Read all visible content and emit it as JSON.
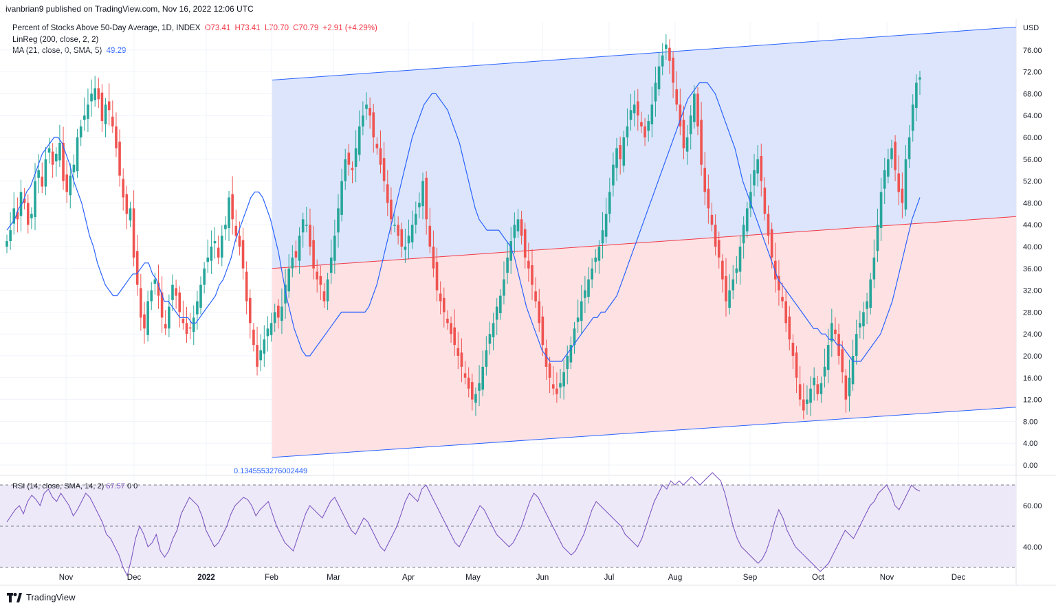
{
  "publisher": "ivanbrian9 published on TradingView.com, Nov 16, 2022 12:06 UTC",
  "legend": {
    "title": "Percent of Stocks Above 50-Day Average, 1D, INDEX",
    "open": "O73.41",
    "high": "H73.41",
    "low": "L70.70",
    "close": "C70.79",
    "change": "+2.91 (+4.29%)",
    "linreg": "LinReg (200, close, 2, 2)",
    "ma": "MA (21, close, 0, SMA, 5)",
    "ma_value": "49.29"
  },
  "rsi_legend": {
    "label": "RSI (14, close, SMA, 14, 2)",
    "value": "67.57",
    "extra1": "0",
    "extra2": "0"
  },
  "channel_label": "0.1345553276002449",
  "footer": {
    "brand": "TradingView"
  },
  "colors": {
    "up": "#26a69a",
    "down": "#ef5350",
    "ma": "#2962ff",
    "upper_fill": "#dce5fb",
    "lower_fill": "#fde1e3",
    "rsi_line": "#7e57c2",
    "rsi_band": "#ede9f8"
  },
  "chart_data": {
    "type": "candlestick",
    "currency": "USD",
    "y_range": [
      0,
      76
    ],
    "y_ticks": [
      "76.00",
      "72.00",
      "68.00",
      "64.00",
      "60.00",
      "56.00",
      "52.00",
      "48.00",
      "44.00",
      "40.00",
      "36.00",
      "32.00",
      "28.00",
      "24.00",
      "20.00",
      "16.00",
      "12.00",
      "8.00",
      "4.00",
      "0.00"
    ],
    "x_ticks": [
      "Nov",
      "Dec",
      "2022",
      "Feb",
      "Mar",
      "Apr",
      "May",
      "Jun",
      "Jul",
      "Aug",
      "Sep",
      "Oct",
      "Nov",
      "Dec"
    ],
    "close_series": [
      41,
      43,
      47,
      45,
      50,
      48,
      44,
      46,
      52,
      54,
      51,
      56,
      58,
      55,
      57,
      59,
      52,
      50,
      53,
      55,
      60,
      62,
      64,
      66,
      68,
      69,
      67,
      63,
      66,
      65,
      62,
      58,
      53,
      49,
      46,
      47,
      38,
      33,
      27,
      25,
      30,
      32,
      34,
      31,
      27,
      25,
      29,
      33,
      31,
      28,
      26,
      24,
      25,
      27,
      30,
      33,
      36,
      38,
      40,
      41,
      38,
      42,
      44,
      49,
      45,
      42,
      40,
      36,
      30,
      26,
      22,
      18,
      21,
      23,
      25,
      26,
      28,
      27,
      29,
      33,
      36,
      38,
      38,
      42,
      45,
      44,
      40,
      36,
      34,
      33,
      30,
      34,
      38,
      42,
      47,
      52,
      56,
      55,
      54,
      58,
      62,
      64,
      66,
      64,
      60,
      58,
      55,
      52,
      48,
      45,
      44,
      42,
      40,
      40,
      42,
      44,
      46,
      48,
      52,
      45,
      40,
      36,
      32,
      30,
      28,
      26,
      24,
      22,
      20,
      18,
      16,
      14,
      12,
      13,
      15,
      18,
      21,
      24,
      26,
      29,
      31,
      34,
      38,
      41,
      44,
      45,
      42,
      38,
      36,
      33,
      30,
      26,
      22,
      18,
      16,
      14,
      13,
      15,
      17,
      20,
      22,
      25,
      27,
      30,
      32,
      34,
      36,
      38,
      40,
      43,
      46,
      50,
      55,
      58,
      56,
      60,
      62,
      65,
      66,
      64,
      62,
      60,
      63,
      66,
      70,
      73,
      75,
      77,
      74,
      70,
      66,
      62,
      58,
      60,
      64,
      68,
      62,
      55,
      50,
      47,
      44,
      40,
      38,
      34,
      30,
      32,
      34,
      36,
      40,
      44,
      47,
      50,
      54,
      56,
      52,
      46,
      42,
      38,
      34,
      32,
      30,
      26,
      23,
      20,
      16,
      12,
      10,
      12,
      14,
      16,
      13,
      15,
      18,
      22,
      26,
      24,
      20,
      17,
      12,
      16,
      20,
      24,
      26,
      28,
      30,
      34,
      38,
      44,
      50,
      54,
      56,
      58,
      54,
      50,
      48,
      56,
      60,
      66,
      70,
      71
    ],
    "ma_series": [
      43,
      44,
      45,
      47,
      48,
      50,
      51,
      53,
      55,
      57,
      58,
      59,
      60,
      60,
      59,
      57,
      55,
      52,
      50,
      48,
      45,
      42,
      40,
      37,
      35,
      33,
      32,
      31,
      31,
      32,
      33,
      34,
      35,
      35,
      36,
      37,
      37,
      35,
      34,
      32,
      30,
      30,
      29,
      28,
      27,
      27,
      27,
      26,
      26,
      27,
      28,
      29,
      30,
      31,
      33,
      34,
      36,
      38,
      41,
      43,
      45,
      47,
      49,
      50,
      50,
      49,
      47,
      45,
      42,
      39,
      35,
      31,
      28,
      25,
      23,
      21,
      20,
      20,
      21,
      22,
      23,
      24,
      25,
      26,
      27,
      28,
      28,
      28,
      28,
      28,
      28,
      28,
      29,
      31,
      33,
      36,
      39,
      42,
      45,
      48,
      51,
      54,
      57,
      60,
      62,
      64,
      66,
      67,
      68,
      68,
      67,
      66,
      65,
      63,
      61,
      59,
      56,
      53,
      50,
      47,
      45,
      44,
      43,
      43,
      43,
      43,
      42,
      41,
      40,
      38,
      35,
      32,
      29,
      27,
      25,
      23,
      21,
      20,
      19,
      19,
      19,
      19,
      20,
      21,
      22,
      23,
      24,
      25,
      26,
      27,
      27,
      28,
      28,
      29,
      30,
      31,
      33,
      35,
      37,
      39,
      41,
      43,
      45,
      47,
      49,
      51,
      53,
      55,
      57,
      59,
      61,
      63,
      65,
      67,
      68,
      69,
      70,
      70,
      70,
      69,
      68,
      66,
      64,
      62,
      60,
      58,
      55,
      52,
      50,
      48,
      46,
      44,
      42,
      40,
      38,
      36,
      34,
      33,
      32,
      31,
      30,
      29,
      28,
      27,
      26,
      25,
      25,
      24,
      24,
      23,
      23,
      22,
      22,
      21,
      20,
      19,
      19,
      19,
      20,
      21,
      22,
      23,
      24,
      26,
      28,
      30,
      33,
      36,
      39,
      42,
      45,
      47,
      49
    ],
    "linreg": {
      "upper": [
        [
          0,
          70.5
        ],
        [
          1,
          80.2
        ]
      ],
      "middle": [
        [
          0,
          36.0
        ],
        [
          1,
          45.5
        ]
      ],
      "lower": [
        [
          0,
          1.4
        ],
        [
          1,
          10.6
        ]
      ]
    },
    "rsi": {
      "y_ticks": [
        "60.00",
        "40.00"
      ],
      "levels": [
        70,
        50,
        30
      ],
      "values": [
        52,
        55,
        58,
        60,
        56,
        62,
        65,
        63,
        60,
        66,
        68,
        64,
        62,
        66,
        63,
        60,
        55,
        58,
        62,
        66,
        64,
        60,
        56,
        52,
        46,
        44,
        40,
        36,
        30,
        26,
        34,
        44,
        50,
        46,
        40,
        42,
        46,
        38,
        35,
        38,
        44,
        48,
        56,
        60,
        64,
        62,
        60,
        55,
        48,
        44,
        40,
        42,
        46,
        50,
        56,
        60,
        62,
        64,
        63,
        60,
        55,
        58,
        60,
        62,
        56,
        50,
        46,
        42,
        40,
        38,
        44,
        50,
        56,
        60,
        58,
        56,
        54,
        58,
        62,
        64,
        60,
        56,
        52,
        48,
        46,
        50,
        54,
        52,
        48,
        44,
        40,
        38,
        42,
        46,
        50,
        56,
        62,
        66,
        64,
        62,
        68,
        70,
        66,
        62,
        58,
        54,
        50,
        46,
        42,
        40,
        44,
        48,
        52,
        56,
        60,
        58,
        54,
        50,
        46,
        44,
        42,
        40,
        42,
        46,
        50,
        56,
        62,
        66,
        64,
        60,
        56,
        52,
        48,
        44,
        40,
        38,
        36,
        38,
        42,
        46,
        52,
        58,
        62,
        60,
        58,
        56,
        54,
        52,
        50,
        46,
        44,
        42,
        40,
        44,
        50,
        56,
        62,
        66,
        70,
        68,
        72,
        70,
        72,
        70,
        72,
        74,
        72,
        70,
        72,
        74,
        76,
        74,
        72,
        66,
        58,
        50,
        44,
        40,
        38,
        36,
        34,
        32,
        34,
        38,
        44,
        52,
        58,
        54,
        48,
        44,
        40,
        38,
        36,
        34,
        32,
        30,
        28,
        30,
        32,
        36,
        40,
        44,
        48,
        46,
        44,
        48,
        52,
        56,
        60,
        62,
        66,
        68,
        70,
        66,
        60,
        58,
        62,
        66,
        70,
        68,
        67
      ]
    }
  }
}
